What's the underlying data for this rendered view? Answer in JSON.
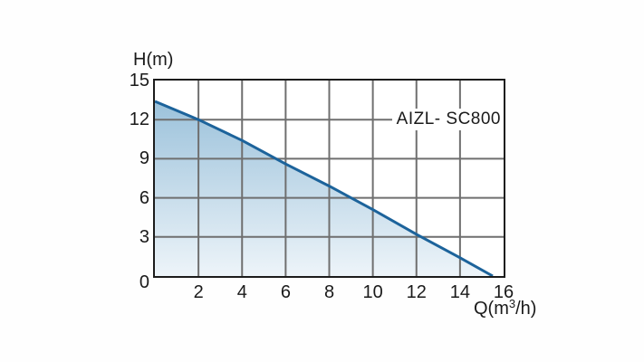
{
  "page": {
    "background": "#fefefe"
  },
  "labels": {
    "y_axis_title": "H(m)",
    "x_axis_title_prefix": "Q(m",
    "x_axis_title_sup": "3",
    "x_axis_title_suffix": "/h)",
    "series_label": "AIZL- SC800"
  },
  "colors": {
    "grid": "#6f6f6f",
    "axis_border": "#1c1c1c",
    "text": "#1a1a1a",
    "curve_line": "#1c639b",
    "fill_top": "#9cc2db",
    "fill_bottom": "#edf4f9"
  },
  "chart_data": {
    "type": "area",
    "title": "AIZL- SC800",
    "xlabel": "Q(m³/h)",
    "ylabel": "H(m)",
    "xlim": [
      0,
      16
    ],
    "ylim": [
      0,
      15
    ],
    "xticks": [
      2,
      4,
      6,
      8,
      10,
      12,
      14,
      16
    ],
    "yticks": [
      0,
      3,
      6,
      9,
      12,
      15
    ],
    "grid": true,
    "legend_position": "none",
    "series": [
      {
        "name": "AIZL- SC800",
        "x": [
          0,
          2,
          4,
          6,
          8,
          10,
          12,
          14,
          15.5
        ],
        "y": [
          13.4,
          12.0,
          10.4,
          8.6,
          6.9,
          5.1,
          3.2,
          1.4,
          0
        ]
      }
    ]
  }
}
